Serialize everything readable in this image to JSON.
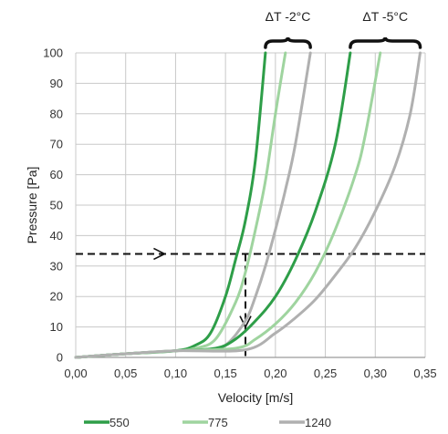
{
  "chart_data": {
    "type": "line",
    "title": "",
    "xlabel": "Velocity [m/s]",
    "ylabel": "Pressure [Pa]",
    "xlim": [
      0,
      0.35
    ],
    "ylim": [
      0,
      100
    ],
    "xticks": [
      0,
      0.05,
      0.1,
      0.15,
      0.2,
      0.25,
      0.3,
      0.35
    ],
    "xtick_labels": [
      "0,00",
      "0,05",
      "0,10",
      "0,15",
      "0,20",
      "0,25",
      "0,30",
      "0,35"
    ],
    "yticks": [
      0,
      10,
      20,
      30,
      40,
      50,
      60,
      70,
      80,
      90,
      100
    ],
    "ytick_labels": [
      "0",
      "10",
      "20",
      "30",
      "40",
      "50",
      "60",
      "70",
      "80",
      "90",
      "100"
    ],
    "grid": true,
    "legend_position": "bottom",
    "colors": {
      "550": "#2e9e48",
      "775": "#9fd49f",
      "1240": "#b0b0b0",
      "grid": "#c8c8c8"
    },
    "legend": [
      {
        "label": "550",
        "color": "#2e9e48"
      },
      {
        "label": "775",
        "color": "#9fd49f"
      },
      {
        "label": "1240",
        "color": "#b0b0b0"
      }
    ],
    "series": [
      {
        "name": "550",
        "group": "ΔT -2°C",
        "color": "#2e9e48",
        "points": [
          [
            0,
            0
          ],
          [
            0.05,
            1.2
          ],
          [
            0.1,
            2.2
          ],
          [
            0.12,
            4
          ],
          [
            0.135,
            8
          ],
          [
            0.15,
            20
          ],
          [
            0.16,
            32
          ],
          [
            0.17,
            45
          ],
          [
            0.18,
            65
          ],
          [
            0.19,
            100
          ]
        ]
      },
      {
        "name": "775",
        "group": "ΔT -2°C",
        "color": "#9fd49f",
        "points": [
          [
            0,
            0
          ],
          [
            0.05,
            1.2
          ],
          [
            0.1,
            2.2
          ],
          [
            0.12,
            3
          ],
          [
            0.14,
            6
          ],
          [
            0.16,
            18
          ],
          [
            0.17,
            28
          ],
          [
            0.18,
            42
          ],
          [
            0.19,
            58
          ],
          [
            0.2,
            80
          ],
          [
            0.21,
            100
          ]
        ]
      },
      {
        "name": "1240",
        "group": "ΔT -2°C",
        "color": "#b0b0b0",
        "points": [
          [
            0,
            0
          ],
          [
            0.05,
            1.2
          ],
          [
            0.1,
            2.2
          ],
          [
            0.13,
            2.5
          ],
          [
            0.15,
            4
          ],
          [
            0.17,
            12
          ],
          [
            0.18,
            20
          ],
          [
            0.19,
            30
          ],
          [
            0.2,
            42
          ],
          [
            0.21,
            55
          ],
          [
            0.22,
            70
          ],
          [
            0.235,
            100
          ]
        ]
      },
      {
        "name": "550",
        "group": "ΔT -5°C",
        "color": "#2e9e48",
        "points": [
          [
            0,
            0
          ],
          [
            0.05,
            1.2
          ],
          [
            0.1,
            2.2
          ],
          [
            0.14,
            3
          ],
          [
            0.16,
            6
          ],
          [
            0.18,
            12
          ],
          [
            0.2,
            20
          ],
          [
            0.22,
            32
          ],
          [
            0.24,
            48
          ],
          [
            0.26,
            70
          ],
          [
            0.275,
            100
          ]
        ]
      },
      {
        "name": "775",
        "group": "ΔT -5°C",
        "color": "#9fd49f",
        "points": [
          [
            0,
            0
          ],
          [
            0.05,
            1.2
          ],
          [
            0.1,
            2.2
          ],
          [
            0.16,
            3
          ],
          [
            0.18,
            6
          ],
          [
            0.2,
            11
          ],
          [
            0.22,
            18
          ],
          [
            0.24,
            28
          ],
          [
            0.26,
            42
          ],
          [
            0.28,
            60
          ],
          [
            0.29,
            73
          ],
          [
            0.305,
            100
          ]
        ]
      },
      {
        "name": "1240",
        "group": "ΔT -5°C",
        "color": "#b0b0b0",
        "points": [
          [
            0,
            0
          ],
          [
            0.05,
            1.2
          ],
          [
            0.1,
            2.2
          ],
          [
            0.17,
            2.5
          ],
          [
            0.2,
            8
          ],
          [
            0.22,
            13
          ],
          [
            0.24,
            19
          ],
          [
            0.26,
            27
          ],
          [
            0.28,
            36
          ],
          [
            0.3,
            48
          ],
          [
            0.32,
            63
          ],
          [
            0.335,
            80
          ],
          [
            0.345,
            100
          ]
        ]
      }
    ],
    "reference_lines": [
      {
        "orientation": "horizontal",
        "value": 34,
        "from_x": 0,
        "to_x": 0.35,
        "style": "dashed"
      },
      {
        "orientation": "vertical",
        "value": 0.17,
        "from_y": 0,
        "to_y": 34,
        "style": "dashed"
      }
    ],
    "annotations": [
      {
        "text": "ΔT -2°C",
        "brace_from_x": 0.19,
        "brace_to_x": 0.235
      },
      {
        "text": "ΔT -5°C",
        "brace_from_x": 0.275,
        "brace_to_x": 0.345
      }
    ]
  }
}
